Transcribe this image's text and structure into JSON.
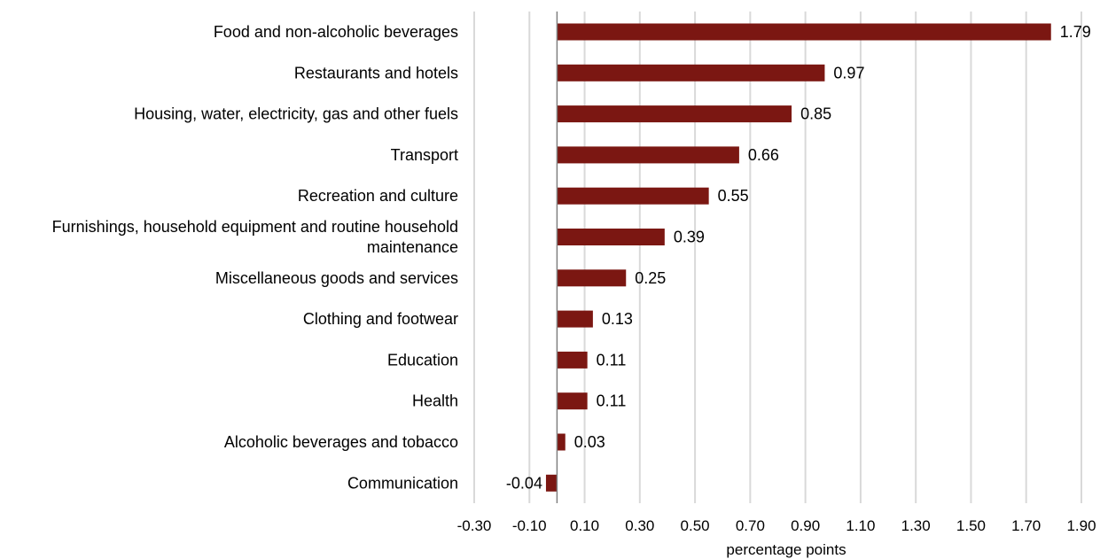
{
  "chart_data": {
    "type": "bar",
    "orientation": "horizontal",
    "categories": [
      "Food and non-alcoholic beverages",
      "Restaurants and hotels",
      "Housing, water, electricity, gas and other fuels",
      "Transport",
      "Recreation and culture",
      "Furnishings, household equipment and routine household maintenance",
      "Miscellaneous goods and services",
      "Clothing and footwear",
      "Education",
      "Health",
      "Alcoholic beverages and tobacco",
      "Communication"
    ],
    "values": [
      1.79,
      0.97,
      0.85,
      0.66,
      0.55,
      0.39,
      0.25,
      0.13,
      0.11,
      0.11,
      0.03,
      -0.04
    ],
    "data_labels": [
      "1.79",
      "0.97",
      "0.85",
      "0.66",
      "0.55",
      "0.39",
      "0.25",
      "0.13",
      "0.11",
      "0.11",
      "0.03",
      "-0.04"
    ],
    "title": "",
    "xlabel": "percentage points",
    "ylabel": "",
    "xlim": [
      -0.3,
      1.9
    ],
    "xticks": [
      -0.3,
      -0.1,
      0.1,
      0.3,
      0.5,
      0.7,
      0.9,
      1.1,
      1.3,
      1.5,
      1.7,
      1.9
    ],
    "xtick_labels": [
      "-0.30",
      "-0.10",
      "0.10",
      "0.30",
      "0.50",
      "0.70",
      "0.90",
      "1.10",
      "1.30",
      "1.50",
      "1.70",
      "1.90"
    ],
    "grid": "vertical",
    "legend": "none",
    "bar_color": "#7b1712",
    "grid_color": "#d9d9d9",
    "zero_line_color": "#808080"
  }
}
